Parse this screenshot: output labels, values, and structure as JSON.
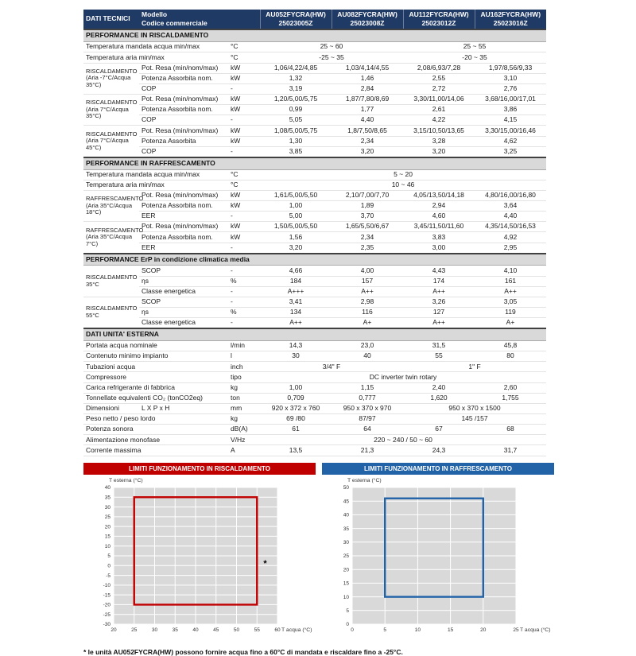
{
  "page": {
    "footnote": "* le unità AU052FYCRA(HW) possono fornire acqua fino a 60°C di mandata e riscaldare fino a -25°C."
  },
  "colors": {
    "header_navy": "#203a66",
    "section_gray": "#d9d9d9",
    "heating_red": "#c00000",
    "cooling_blue": "#2263a8",
    "plot_gray": "#d9d9d9"
  },
  "table": {
    "header": {
      "title": "DATI TECNICI",
      "model_label": "Modello",
      "code_label": "Codice commerciale",
      "models": [
        {
          "name": "AU052FYCRA(HW)",
          "code": "25023005Z"
        },
        {
          "name": "AU082FYCRA(HW)",
          "code": "25023008Z"
        },
        {
          "name": "AU112FYCRA(HW)",
          "code": "25023012Z"
        },
        {
          "name": "AU162FYCRA(HW)",
          "code": "25023016Z"
        }
      ]
    },
    "sections": [
      {
        "title": "PERFORMANCE IN RISCALDAMENTO",
        "rows": [
          [
            {
              "t": "Temperatura mandata acqua min/max",
              "cs": 2,
              "c": "lbl"
            },
            {
              "t": "°C",
              "c": "unit"
            },
            {
              "t": "25 ~ 60",
              "cs": 2
            },
            {
              "t": "25 ~ 55",
              "cs": 2
            }
          ],
          [
            {
              "t": "Temperatura aria min/max",
              "cs": 2,
              "c": "lbl"
            },
            {
              "t": "°C",
              "c": "unit"
            },
            {
              "t": "-25 ~ 35",
              "cs": 2
            },
            {
              "t": "-20 ~ 35",
              "cs": 2
            }
          ],
          [
            {
              "t": "RISCALDAMENTO (Aria -7°C/Acqua 35°C)",
              "rs": 3,
              "c": "grp"
            },
            {
              "t": "Pot. Resa (min/nom/max)",
              "c": "prm"
            },
            {
              "t": "kW",
              "c": "unit"
            },
            {
              "t": "1,06/4,22/4,85"
            },
            {
              "t": "1,03/4,14/4,55"
            },
            {
              "t": "2,08/6,93/7,28"
            },
            {
              "t": "1,97/8,56/9,33"
            }
          ],
          [
            {
              "t": "Potenza Assorbita nom.",
              "c": "prm"
            },
            {
              "t": "kW",
              "c": "unit"
            },
            {
              "t": "1,32"
            },
            {
              "t": "1,46"
            },
            {
              "t": "2,55"
            },
            {
              "t": "3,10"
            }
          ],
          [
            {
              "t": "COP",
              "c": "prm"
            },
            {
              "t": "-",
              "c": "unit"
            },
            {
              "t": "3,19"
            },
            {
              "t": "2,84"
            },
            {
              "t": "2,72"
            },
            {
              "t": "2,76"
            }
          ],
          [
            {
              "t": "RISCALDAMENTO (Aria 7°C/Acqua 35°C)",
              "rs": 3,
              "c": "grp"
            },
            {
              "t": "Pot. Resa (min/nom/max)",
              "c": "prm"
            },
            {
              "t": "kW",
              "c": "unit"
            },
            {
              "t": "1,20/5,00/5,75"
            },
            {
              "t": "1,87/7,80/8,69"
            },
            {
              "t": "3,30/11,00/14,06"
            },
            {
              "t": "3,68/16,00/17,01"
            }
          ],
          [
            {
              "t": "Potenza Assorbita nom.",
              "c": "prm"
            },
            {
              "t": "kW",
              "c": "unit"
            },
            {
              "t": "0,99"
            },
            {
              "t": "1,77"
            },
            {
              "t": "2,61"
            },
            {
              "t": "3,86"
            }
          ],
          [
            {
              "t": "COP",
              "c": "prm"
            },
            {
              "t": "-",
              "c": "unit"
            },
            {
              "t": "5,05"
            },
            {
              "t": "4,40"
            },
            {
              "t": "4,22"
            },
            {
              "t": "4,15"
            }
          ],
          [
            {
              "t": "RISCALDAMENTO (Aria 7°C/Acqua 45°C)",
              "rs": 3,
              "c": "grp"
            },
            {
              "t": "Pot. Resa (min/nom/max)",
              "c": "prm"
            },
            {
              "t": "kW",
              "c": "unit"
            },
            {
              "t": "1,08/5,00/5,75"
            },
            {
              "t": "1,8/7,50/8,65"
            },
            {
              "t": "3,15/10,50/13,65"
            },
            {
              "t": "3,30/15,00/16,46"
            }
          ],
          [
            {
              "t": "Potenza Assorbita",
              "c": "prm"
            },
            {
              "t": "kW",
              "c": "unit"
            },
            {
              "t": "1,30"
            },
            {
              "t": "2,34"
            },
            {
              "t": "3,28"
            },
            {
              "t": "4,62"
            }
          ],
          [
            {
              "t": "COP",
              "c": "prm"
            },
            {
              "t": "-",
              "c": "unit"
            },
            {
              "t": "3,85"
            },
            {
              "t": "3,20"
            },
            {
              "t": "3,20"
            },
            {
              "t": "3,25"
            }
          ]
        ]
      },
      {
        "title": "PERFORMANCE IN RAFFRESCAMENTO",
        "rows": [
          [
            {
              "t": "Temperatura mandata acqua min/max",
              "cs": 2,
              "c": "lbl"
            },
            {
              "t": "°C",
              "c": "unit"
            },
            {
              "t": "5 ~ 20",
              "cs": 4
            }
          ],
          [
            {
              "t": "Temperatura aria min/max",
              "cs": 2,
              "c": "lbl"
            },
            {
              "t": "°C",
              "c": "unit"
            },
            {
              "t": "10 ~ 46",
              "cs": 4
            }
          ],
          [
            {
              "t": "RAFFRESCAMENTO (Aria 35°C/Acqua 18°C)",
              "rs": 3,
              "c": "grp"
            },
            {
              "t": "Pot. Resa (min/nom/max)",
              "c": "prm"
            },
            {
              "t": "kW",
              "c": "unit"
            },
            {
              "t": "1,61/5,00/5,50"
            },
            {
              "t": "2,10/7,00/7,70"
            },
            {
              "t": "4,05/13,50/14,18"
            },
            {
              "t": "4,80/16,00/16,80"
            }
          ],
          [
            {
              "t": "Potenza Assorbita nom.",
              "c": "prm"
            },
            {
              "t": "kW",
              "c": "unit"
            },
            {
              "t": "1,00"
            },
            {
              "t": "1,89"
            },
            {
              "t": "2,94"
            },
            {
              "t": "3,64"
            }
          ],
          [
            {
              "t": "EER",
              "c": "prm"
            },
            {
              "t": "-",
              "c": "unit"
            },
            {
              "t": "5,00"
            },
            {
              "t": "3,70"
            },
            {
              "t": "4,60"
            },
            {
              "t": "4,40"
            }
          ],
          [
            {
              "t": "RAFFRESCAMENTO (Aria 35°C/Acqua 7°C)",
              "rs": 3,
              "c": "grp"
            },
            {
              "t": "Pot. Resa (min/nom/max)",
              "c": "prm"
            },
            {
              "t": "kW",
              "c": "unit"
            },
            {
              "t": "1,50/5,00/5,50"
            },
            {
              "t": "1,65/5,50/6,67"
            },
            {
              "t": "3,45/11,50/11,60"
            },
            {
              "t": "4,35/14,50/16,53"
            }
          ],
          [
            {
              "t": "Potenza Assorbita nom.",
              "c": "prm"
            },
            {
              "t": "kW",
              "c": "unit"
            },
            {
              "t": "1,56"
            },
            {
              "t": "2,34"
            },
            {
              "t": "3,83"
            },
            {
              "t": "4,92"
            }
          ],
          [
            {
              "t": "EER",
              "c": "prm"
            },
            {
              "t": "-",
              "c": "unit"
            },
            {
              "t": "3,20"
            },
            {
              "t": "2,35"
            },
            {
              "t": "3,00"
            },
            {
              "t": "2,95"
            }
          ]
        ]
      },
      {
        "title": "PERFORMANCE ErP in condizione climatica media",
        "rows": [
          [
            {
              "t": "RISCALDAMENTO 35°C",
              "rs": 3,
              "c": "grp"
            },
            {
              "t": "SCOP",
              "c": "prm"
            },
            {
              "t": "-",
              "c": "unit"
            },
            {
              "t": "4,66"
            },
            {
              "t": "4,00"
            },
            {
              "t": "4,43"
            },
            {
              "t": "4,10"
            }
          ],
          [
            {
              "t": "ηs",
              "c": "prm"
            },
            {
              "t": "%",
              "c": "unit"
            },
            {
              "t": "184"
            },
            {
              "t": "157"
            },
            {
              "t": "174"
            },
            {
              "t": "161"
            }
          ],
          [
            {
              "t": "Classe energetica",
              "c": "prm"
            },
            {
              "t": "-",
              "c": "unit"
            },
            {
              "t": "A+++"
            },
            {
              "t": "A++"
            },
            {
              "t": "A++"
            },
            {
              "t": "A++"
            }
          ],
          [
            {
              "t": "RISCALDAMENTO 55°C",
              "rs": 3,
              "c": "grp"
            },
            {
              "t": "SCOP",
              "c": "prm"
            },
            {
              "t": "-",
              "c": "unit"
            },
            {
              "t": "3,41"
            },
            {
              "t": "2,98"
            },
            {
              "t": "3,26"
            },
            {
              "t": "3,05"
            }
          ],
          [
            {
              "t": "ηs",
              "c": "prm"
            },
            {
              "t": "%",
              "c": "unit"
            },
            {
              "t": "134"
            },
            {
              "t": "116"
            },
            {
              "t": "127"
            },
            {
              "t": "119"
            }
          ],
          [
            {
              "t": "Classe energetica",
              "c": "prm"
            },
            {
              "t": "-",
              "c": "unit"
            },
            {
              "t": "A++"
            },
            {
              "t": "A+"
            },
            {
              "t": "A++"
            },
            {
              "t": "A+"
            }
          ]
        ]
      },
      {
        "title": "DATI UNITA' ESTERNA",
        "rows": [
          [
            {
              "t": "Portata acqua nominale",
              "cs": 2,
              "c": "lbl"
            },
            {
              "t": "l/min",
              "c": "unit"
            },
            {
              "t": "14,3"
            },
            {
              "t": "23,0"
            },
            {
              "t": "31,5"
            },
            {
              "t": "45,8"
            }
          ],
          [
            {
              "t": "Contenuto minimo impianto",
              "cs": 2,
              "c": "lbl"
            },
            {
              "t": "l",
              "c": "unit"
            },
            {
              "t": "30"
            },
            {
              "t": "40"
            },
            {
              "t": "55"
            },
            {
              "t": "80"
            }
          ],
          [
            {
              "t": "Tubazioni acqua",
              "cs": 2,
              "c": "lbl"
            },
            {
              "t": "inch",
              "c": "unit"
            },
            {
              "t": "3/4\" F",
              "cs": 2
            },
            {
              "t": "1\" F",
              "cs": 2
            }
          ],
          [
            {
              "t": "Compressore",
              "cs": 2,
              "c": "lbl"
            },
            {
              "t": "tipo",
              "c": "unit"
            },
            {
              "t": "DC inverter twin rotary",
              "cs": 4
            }
          ],
          [
            {
              "t": "Carica refrigerante di fabbrica",
              "cs": 2,
              "c": "lbl"
            },
            {
              "t": "kg",
              "c": "unit"
            },
            {
              "t": "1,00"
            },
            {
              "t": "1,15"
            },
            {
              "t": "2,40"
            },
            {
              "t": "2,60"
            }
          ],
          [
            {
              "t": "Tonnellate equivalenti CO₂ (tonCO2eq)",
              "cs": 2,
              "c": "lbl"
            },
            {
              "t": "ton",
              "c": "unit"
            },
            {
              "t": "0,709"
            },
            {
              "t": "0,777"
            },
            {
              "t": "1,620"
            },
            {
              "t": "1,755"
            }
          ],
          [
            {
              "t": "Dimensioni",
              "c": "lbl"
            },
            {
              "t": "L X P x H",
              "c": "prm"
            },
            {
              "t": "mm",
              "c": "unit"
            },
            {
              "t": "920 x 372 x 760"
            },
            {
              "t": "950 x 370 x 970"
            },
            {
              "t": "950 x 370 x 1500",
              "cs": 2
            }
          ],
          [
            {
              "t": "Peso netto / peso lordo",
              "cs": 2,
              "c": "lbl"
            },
            {
              "t": "kg",
              "c": "unit"
            },
            {
              "t": "69 /80"
            },
            {
              "t": "87/97"
            },
            {
              "t": "145 /157",
              "cs": 2
            }
          ],
          [
            {
              "t": "Potenza sonora",
              "cs": 2,
              "c": "lbl"
            },
            {
              "t": "dB(A)",
              "c": "unit"
            },
            {
              "t": "61"
            },
            {
              "t": "64"
            },
            {
              "t": "67"
            },
            {
              "t": "68"
            }
          ],
          [
            {
              "t": "Alimentazione monofase",
              "cs": 2,
              "c": "lbl"
            },
            {
              "t": "V/Hz",
              "c": "unit"
            },
            {
              "t": "220 ~ 240 / 50 ~ 60",
              "cs": 4
            }
          ],
          [
            {
              "t": "Corrente massima",
              "cs": 2,
              "c": "lbl"
            },
            {
              "t": "A",
              "c": "unit"
            },
            {
              "t": "13,5"
            },
            {
              "t": "21,3"
            },
            {
              "t": "24,3"
            },
            {
              "t": "31,7"
            }
          ]
        ]
      }
    ]
  },
  "chart_data": [
    {
      "type": "area",
      "title": "LIMITI FUNZIONAMENTO IN RISCALDAMENTO",
      "header_color": "#c00000",
      "plot_bg": "#d9d9d9",
      "xlabel": "T acqua (°C)",
      "ylabel": "T esterna (°C)",
      "xlim": [
        20,
        60
      ],
      "ylim": [
        -30,
        40
      ],
      "xticks": [
        20,
        25,
        30,
        35,
        40,
        45,
        50,
        55,
        60
      ],
      "yticks": [
        -30,
        -25,
        -20,
        -15,
        -10,
        -5,
        0,
        5,
        10,
        15,
        20,
        25,
        30,
        35,
        40
      ],
      "region": {
        "x1": 25,
        "x2": 55,
        "y1": -20,
        "y2": 35,
        "color": "#c00000"
      },
      "annotation": {
        "text": "*",
        "x": 57,
        "y": 1
      }
    },
    {
      "type": "area",
      "title": "LIMITI FUNZIONAMENTO IN RAFFRESCAMENTO",
      "header_color": "#2263a8",
      "plot_bg": "#d9d9d9",
      "xlabel": "T acqua (°C)",
      "ylabel": "T esterna (°C)",
      "xlim": [
        0,
        25
      ],
      "ylim": [
        0,
        50
      ],
      "xticks": [
        0,
        5,
        10,
        15,
        20,
        25
      ],
      "yticks": [
        0,
        5,
        10,
        15,
        20,
        25,
        30,
        35,
        40,
        45,
        50
      ],
      "region": {
        "x1": 5,
        "x2": 20,
        "y1": 10,
        "y2": 46,
        "color": "#2263a8"
      }
    }
  ]
}
